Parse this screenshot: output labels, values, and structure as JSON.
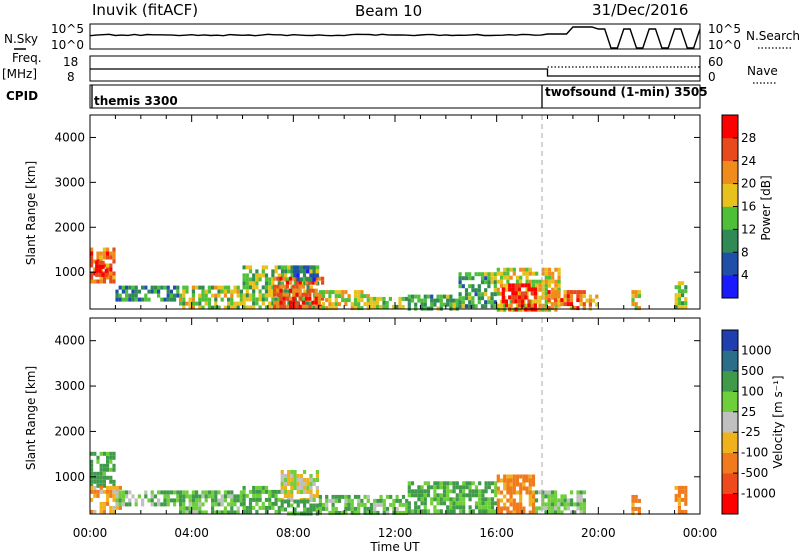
{
  "header": {
    "station": "Inuvik (fitACF)",
    "beam": "Beam 10",
    "date": "31/Dec/2016"
  },
  "top_panels": {
    "nsky_label": "N.Sky",
    "nsky_ticks": [
      "10^5",
      "10^0"
    ],
    "nsearch_label": "N.Search",
    "nsearch_ticks": [
      "10^5",
      "10^0"
    ],
    "freq_label": "Freq.",
    "freq_unit": "[MHz]",
    "freq_ticks": [
      "18",
      "8"
    ],
    "nave_label": "Nave",
    "nave_ticks": [
      "60",
      "0"
    ],
    "cpid_label": "CPID",
    "cpid_segments": [
      {
        "name": "themis 3300",
        "start": "00:00",
        "end": "18:00"
      },
      {
        "name": "twofsound (1-min) 3505",
        "start": "18:00",
        "end": "24:00"
      }
    ]
  },
  "axes": {
    "ylabel": "Slant Range [km]",
    "xlabel": "Time UT",
    "xticks": [
      "00:00",
      "04:00",
      "08:00",
      "12:00",
      "16:00",
      "20:00",
      "00:00"
    ],
    "yticks": [
      "1000",
      "2000",
      "3000",
      "4000"
    ]
  },
  "colorbars": {
    "power": {
      "label": "Power [dB]",
      "ticks": [
        "4",
        "8",
        "12",
        "16",
        "20",
        "24",
        "28"
      ],
      "colors": [
        "#1a1aff",
        "#1f4fa8",
        "#2f8a55",
        "#4fbf3a",
        "#e8c21c",
        "#f08c1c",
        "#e84a1c",
        "#ff0000"
      ]
    },
    "velocity": {
      "label": "Velocity [m s⁻¹]",
      "ticks": [
        "1000",
        "500",
        "100",
        "25",
        "-25",
        "-100",
        "-500",
        "-1000"
      ],
      "colors": [
        "#1f3fb0",
        "#2a6e8a",
        "#3f9a4a",
        "#6fcf3a",
        "#c0c0c0",
        "#f0b21c",
        "#f07a1c",
        "#ee4a1c",
        "#ff0000"
      ]
    }
  },
  "chart_data": [
    {
      "type": "heatmap",
      "title": "Power [dB]",
      "x_unit": "UT hours",
      "xlim": [
        0,
        24
      ],
      "ylim": [
        180,
        4500
      ],
      "value_range": [
        0,
        30
      ],
      "regions": [
        {
          "t0": 0.0,
          "t1": 1.0,
          "r0": 800,
          "r1": 1550,
          "value": 24
        },
        {
          "t0": 0.2,
          "t1": 0.7,
          "r0": 900,
          "r1": 1250,
          "value": 29
        },
        {
          "t0": 1.0,
          "t1": 3.5,
          "r0": 400,
          "r1": 700,
          "value": 10
        },
        {
          "t0": 3.5,
          "t1": 6.0,
          "r0": 250,
          "r1": 700,
          "value": 16
        },
        {
          "t0": 6.0,
          "t1": 9.0,
          "r0": 200,
          "r1": 1150,
          "value": 14
        },
        {
          "t0": 7.2,
          "t1": 9.2,
          "r0": 200,
          "r1": 900,
          "value": 26
        },
        {
          "t0": 8.0,
          "t1": 9.0,
          "r0": 800,
          "r1": 1150,
          "value": 7
        },
        {
          "t0": 9.0,
          "t1": 11.0,
          "r0": 200,
          "r1": 600,
          "value": 18
        },
        {
          "t0": 11.0,
          "t1": 12.5,
          "r0": 200,
          "r1": 450,
          "value": 14
        },
        {
          "t0": 12.5,
          "t1": 14.5,
          "r0": 200,
          "r1": 500,
          "value": 12
        },
        {
          "t0": 14.5,
          "t1": 16.0,
          "r0": 200,
          "r1": 1000,
          "value": 12
        },
        {
          "t0": 16.0,
          "t1": 18.5,
          "r0": 200,
          "r1": 1100,
          "value": 18
        },
        {
          "t0": 16.2,
          "t1": 17.5,
          "r0": 200,
          "r1": 750,
          "value": 29
        },
        {
          "t0": 18.0,
          "t1": 19.5,
          "r0": 200,
          "r1": 600,
          "value": 24
        },
        {
          "t0": 19.5,
          "t1": 20.0,
          "r0": 200,
          "r1": 500,
          "value": 20
        },
        {
          "t0": 21.3,
          "t1": 21.6,
          "r0": 200,
          "r1": 600,
          "value": 18
        },
        {
          "t0": 23.0,
          "t1": 23.4,
          "r0": 200,
          "r1": 800,
          "value": 14
        }
      ]
    },
    {
      "type": "heatmap",
      "title": "Velocity [m s⁻¹]",
      "x_unit": "UT hours",
      "xlim": [
        0,
        24
      ],
      "ylim": [
        180,
        4500
      ],
      "value_range": [
        -1000,
        1000
      ],
      "regions": [
        {
          "t0": 0.0,
          "t1": 1.0,
          "r0": 800,
          "r1": 1550,
          "value": 150
        },
        {
          "t0": 0.0,
          "t1": 1.2,
          "r0": 200,
          "r1": 800,
          "value": -80
        },
        {
          "t0": 1.0,
          "t1": 3.5,
          "r0": 400,
          "r1": 700,
          "value": 60
        },
        {
          "t0": 3.5,
          "t1": 6.0,
          "r0": 250,
          "r1": 700,
          "value": 80
        },
        {
          "t0": 6.0,
          "t1": 7.5,
          "r0": 200,
          "r1": 800,
          "value": 120
        },
        {
          "t0": 7.5,
          "t1": 9.0,
          "r0": 500,
          "r1": 1150,
          "value": 0
        },
        {
          "t0": 7.5,
          "t1": 9.0,
          "r0": 200,
          "r1": 500,
          "value": 150
        },
        {
          "t0": 9.0,
          "t1": 12.5,
          "r0": 200,
          "r1": 600,
          "value": 80
        },
        {
          "t0": 12.5,
          "t1": 16.0,
          "r0": 200,
          "r1": 900,
          "value": 120
        },
        {
          "t0": 16.0,
          "t1": 17.5,
          "r0": 200,
          "r1": 1050,
          "value": -150
        },
        {
          "t0": 17.5,
          "t1": 19.5,
          "r0": 200,
          "r1": 700,
          "value": 80
        },
        {
          "t0": 21.3,
          "t1": 21.6,
          "r0": 200,
          "r1": 600,
          "value": -120
        },
        {
          "t0": 23.0,
          "t1": 23.4,
          "r0": 200,
          "r1": 800,
          "value": -150
        }
      ]
    }
  ]
}
